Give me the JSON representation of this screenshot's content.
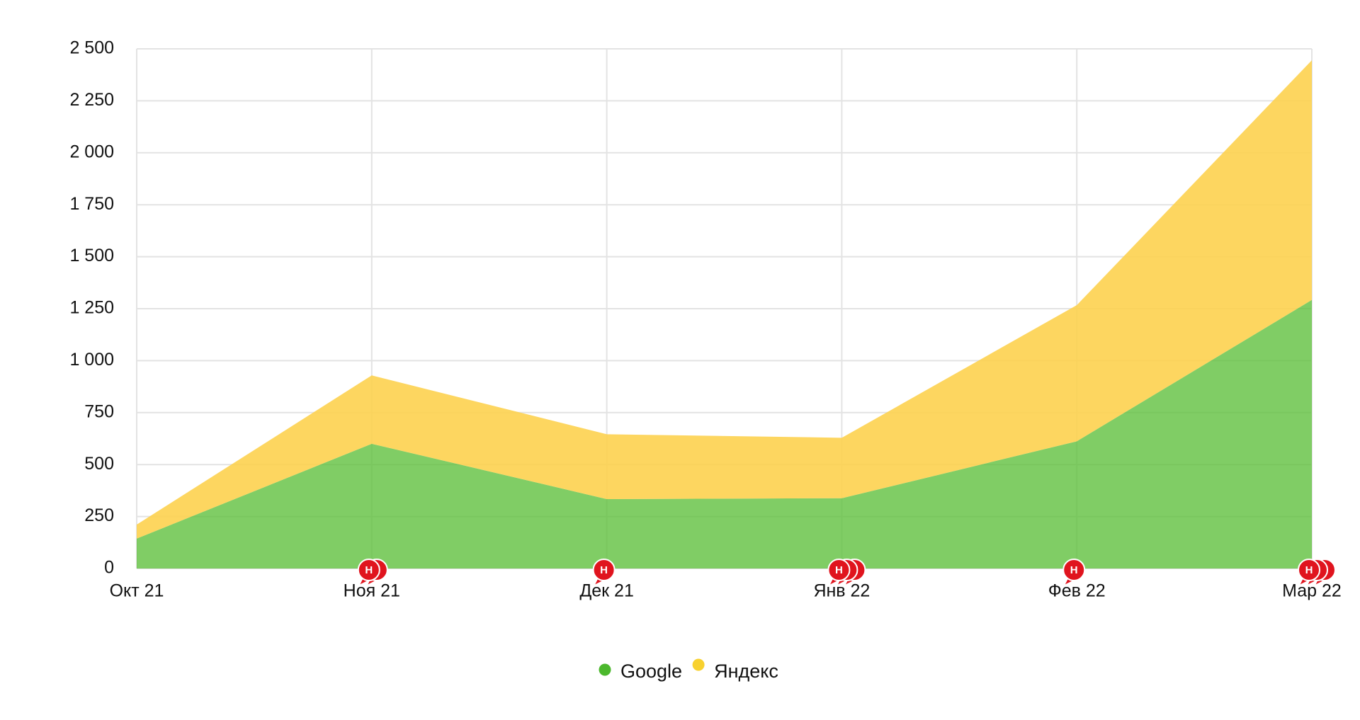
{
  "chart_data": {
    "type": "stacked_area",
    "categories": [
      "Окт 21",
      "Ноя 21",
      "Дек 21",
      "Янв 22",
      "Фев 22",
      "Мар 22"
    ],
    "series": [
      {
        "name": "Google",
        "color": "#5cbf3a",
        "values": [
          144,
          600,
          334,
          338,
          612,
          1292
        ]
      },
      {
        "name": "Яндекс",
        "color": "#fdd04a",
        "values": [
          67,
          329,
          312,
          291,
          655,
          1153
        ]
      }
    ],
    "ylim": [
      0,
      2500
    ],
    "yticks": [
      0,
      250,
      500,
      750,
      {
        "value": 1000,
        "label": "1 000"
      },
      {
        "value": 1250,
        "label": "1 250"
      },
      {
        "value": 1500,
        "label": "1 500"
      },
      {
        "value": 1750,
        "label": "1 750"
      },
      {
        "value": 2000,
        "label": "2 000"
      },
      {
        "value": 2250,
        "label": "2 250"
      },
      {
        "value": 2500,
        "label": "2 500"
      }
    ],
    "grid": true,
    "legend": "bottom",
    "markers": [
      {
        "x": "Ноя 21",
        "label": "Н"
      },
      {
        "x": "Ноя 21",
        "label": "Н"
      },
      {
        "x": "Дек 21",
        "label": "Н"
      },
      {
        "x": "Янв 22",
        "label": "Н"
      },
      {
        "x": "Янв 22",
        "label": "Н"
      },
      {
        "x": "Янв 22",
        "label": "Н"
      },
      {
        "x": "Фев 22",
        "label": "Н"
      },
      {
        "x": "Мар 22",
        "label": "Н"
      },
      {
        "x": "Мар 22",
        "label": "Н"
      },
      {
        "x": "Мар 22",
        "label": "Н"
      }
    ]
  }
}
